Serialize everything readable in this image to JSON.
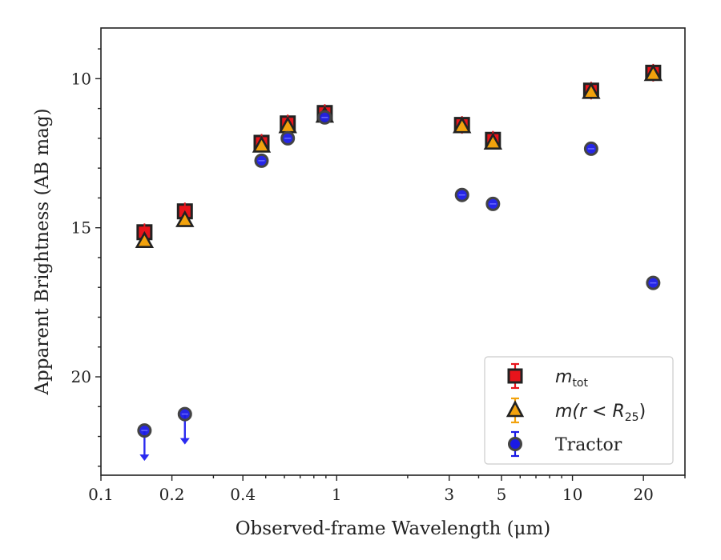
{
  "chart_data": {
    "type": "scatter",
    "x_scale": "log",
    "y_inverted": true,
    "xlabel": "Observed-frame Wavelength (μm)",
    "ylabel": "Apparent Brightness (AB mag)",
    "xlim": [
      0.1,
      30
    ],
    "ylim": [
      23.3,
      8.3
    ],
    "xticks": [
      {
        "value": 0.1,
        "label": "0.1"
      },
      {
        "value": 0.2,
        "label": "0.2"
      },
      {
        "value": 0.4,
        "label": "0.4"
      },
      {
        "value": 1,
        "label": "1"
      },
      {
        "value": 3,
        "label": "3"
      },
      {
        "value": 5,
        "label": "5"
      },
      {
        "value": 10,
        "label": "10"
      },
      {
        "value": 20,
        "label": "20"
      }
    ],
    "yticks": [
      {
        "value": 10,
        "label": "10"
      },
      {
        "value": 15,
        "label": "15"
      },
      {
        "value": 20,
        "label": "20"
      }
    ],
    "legend_position": "lower-right",
    "series": [
      {
        "name": "m_tot",
        "label_main": "m",
        "label_sub": "tot",
        "marker": "square",
        "color": "#e8141b",
        "edge": "#222222",
        "error_color": "#e8141b",
        "points": [
          {
            "x": 0.153,
            "y": 15.15
          },
          {
            "x": 0.227,
            "y": 14.45
          },
          {
            "x": 0.48,
            "y": 12.15
          },
          {
            "x": 0.62,
            "y": 11.5
          },
          {
            "x": 0.89,
            "y": 11.15
          },
          {
            "x": 3.4,
            "y": 11.55
          },
          {
            "x": 4.6,
            "y": 12.05
          },
          {
            "x": 12.0,
            "y": 10.4
          },
          {
            "x": 22.0,
            "y": 9.8
          }
        ]
      },
      {
        "name": "m(r < R25)",
        "label_main": "m(r < R",
        "label_sub": "25",
        "label_end": ")",
        "marker": "triangle",
        "color": "#f2a20d",
        "edge": "#222222",
        "error_color": "#f2a20d",
        "points": [
          {
            "x": 0.153,
            "y": 15.45
          },
          {
            "x": 0.227,
            "y": 14.75
          },
          {
            "x": 0.48,
            "y": 12.25
          },
          {
            "x": 0.62,
            "y": 11.6
          },
          {
            "x": 0.89,
            "y": 11.25
          },
          {
            "x": 3.4,
            "y": 11.6
          },
          {
            "x": 4.6,
            "y": 12.15
          },
          {
            "x": 12.0,
            "y": 10.45
          },
          {
            "x": 22.0,
            "y": 9.85
          }
        ]
      },
      {
        "name": "Tractor",
        "label_main": "Tractor",
        "marker": "circle",
        "color": "#1a1ae6",
        "edge": "#444444",
        "error_color": "#1a1ae6",
        "points": [
          {
            "x": 0.153,
            "y": 21.8,
            "upper_limit": true
          },
          {
            "x": 0.227,
            "y": 21.25,
            "upper_limit": true
          },
          {
            "x": 0.48,
            "y": 12.75
          },
          {
            "x": 0.62,
            "y": 12.0
          },
          {
            "x": 0.89,
            "y": 11.3
          },
          {
            "x": 3.4,
            "y": 13.9
          },
          {
            "x": 4.6,
            "y": 14.2
          },
          {
            "x": 12.0,
            "y": 12.35
          },
          {
            "x": 22.0,
            "y": 16.85
          }
        ]
      }
    ]
  }
}
